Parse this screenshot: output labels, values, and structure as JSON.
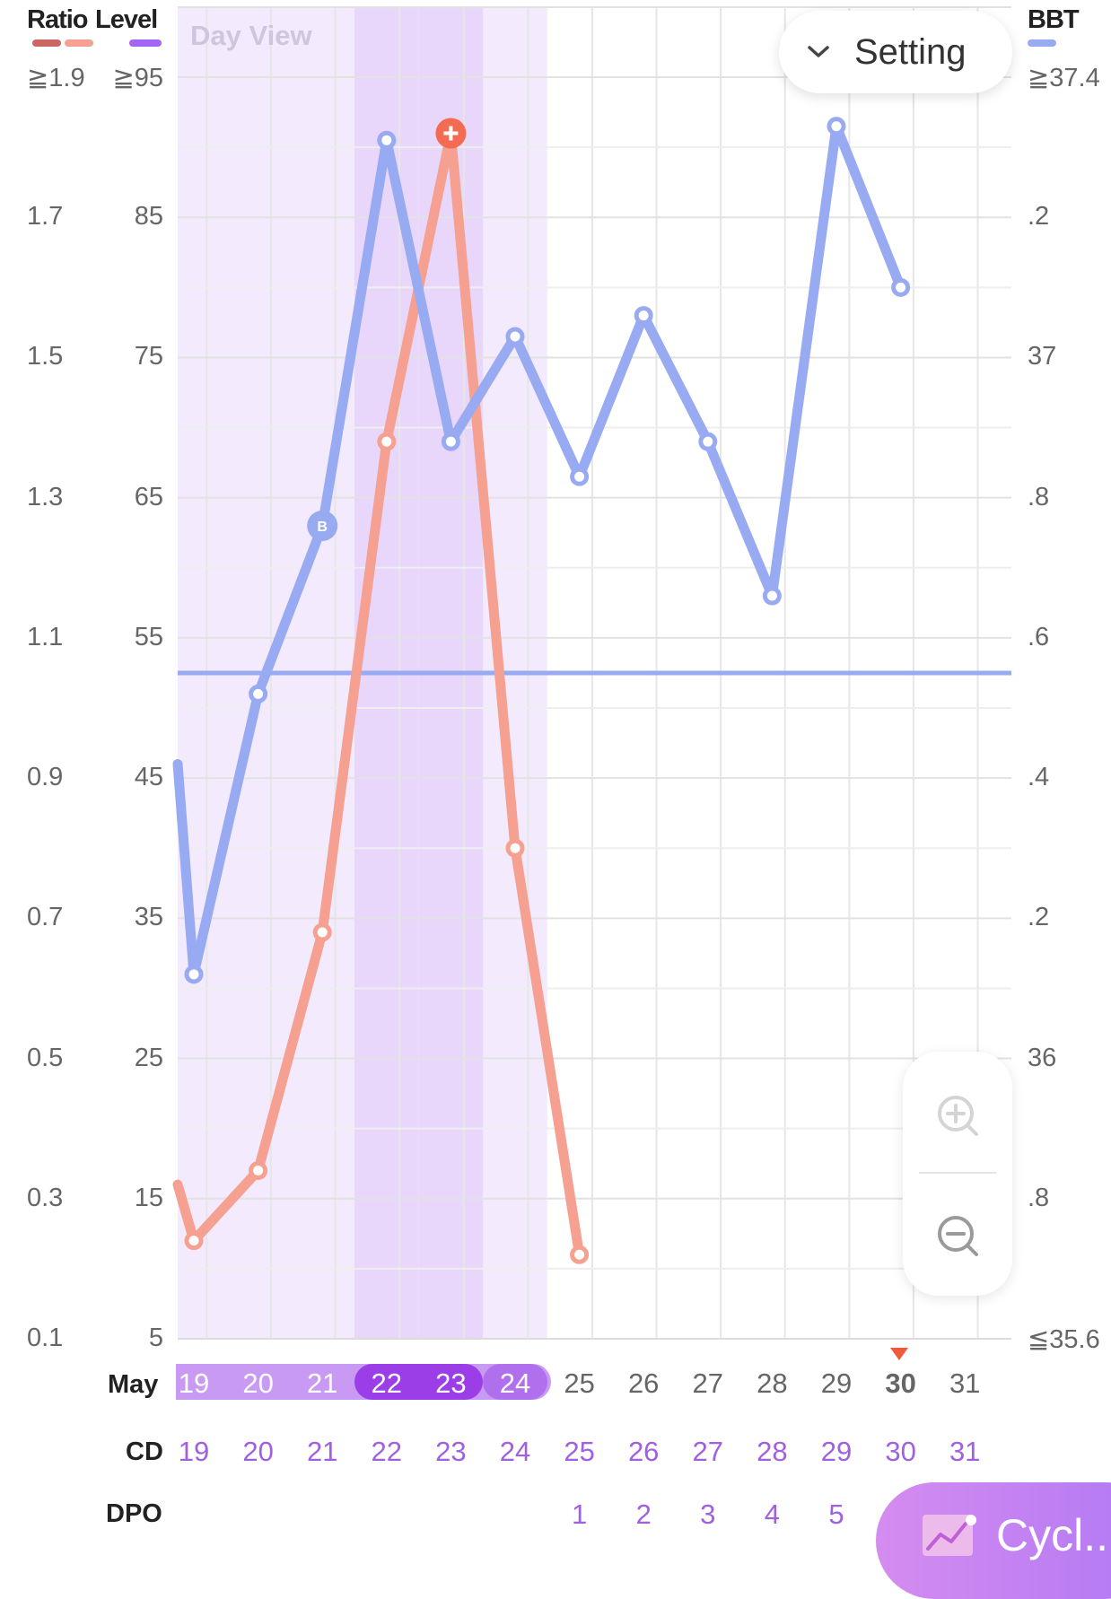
{
  "header": {
    "ratio_label": "Ratio",
    "level_label": "Level",
    "bbt_label": "BBT",
    "day_view_label": "Day View",
    "setting_label": "Setting",
    "ratio_colors": [
      "#cc6666",
      "#f5a090"
    ],
    "level_color": "#a566f5",
    "bbt_color": "#98aaf2"
  },
  "axes": {
    "ratio_ticks": [
      "≧1.9",
      "1.7",
      "1.5",
      "1.3",
      "1.1",
      "0.9",
      "0.7",
      "0.5",
      "0.3",
      "0.1"
    ],
    "level_ticks": [
      "≧95",
      "85",
      "75",
      "65",
      "55",
      "45",
      "35",
      "25",
      "15",
      "5"
    ],
    "bbt_ticks": [
      "≧37.4",
      ".2",
      "37",
      ".8",
      ".6",
      ".4",
      ".2",
      "36",
      ".8",
      "≦35.6"
    ]
  },
  "bottom": {
    "month_label": "May",
    "cd_label": "CD",
    "dpo_label": "DPO",
    "days": [
      "19",
      "20",
      "21",
      "22",
      "23",
      "24",
      "25",
      "26",
      "27",
      "28",
      "29",
      "30",
      "31"
    ],
    "cd": [
      "19",
      "20",
      "21",
      "22",
      "23",
      "24",
      "25",
      "26",
      "27",
      "28",
      "29",
      "30",
      "31"
    ],
    "dpo": [
      "",
      "",
      "",
      "",
      "",
      "",
      "1",
      "2",
      "3",
      "4",
      "5",
      "",
      ""
    ],
    "today": "30",
    "cycle_button_label": "Cycl..."
  },
  "chart_data": {
    "type": "line",
    "x": [
      19,
      20,
      21,
      22,
      23,
      24,
      25,
      26,
      27,
      28,
      29,
      30,
      31
    ],
    "series": [
      {
        "name": "Level",
        "axis": "level",
        "color": "#f5a090",
        "values": [
          12,
          17,
          34,
          69,
          91,
          40,
          11,
          null,
          null,
          null,
          null,
          null,
          null
        ],
        "peak_marker_day": 23
      },
      {
        "name": "BBT",
        "axis": "bbt",
        "color": "#98aaf2",
        "values": [
          36.12,
          36.52,
          36.76,
          37.31,
          36.88,
          37.03,
          36.83,
          37.06,
          36.88,
          36.66,
          37.33,
          37.1,
          null
        ],
        "badge_day": 21,
        "badge_text": "B"
      }
    ],
    "coverline_bbt": 36.55,
    "highlight": {
      "fertile_light_days": [
        19,
        20,
        21,
        24
      ],
      "fertile_dark_days": [
        22,
        23
      ]
    },
    "level_range": [
      5,
      95
    ],
    "bbt_range": [
      35.6,
      37.4
    ],
    "ratio_range": [
      0.1,
      1.9
    ],
    "grid": true,
    "legend": "top"
  }
}
